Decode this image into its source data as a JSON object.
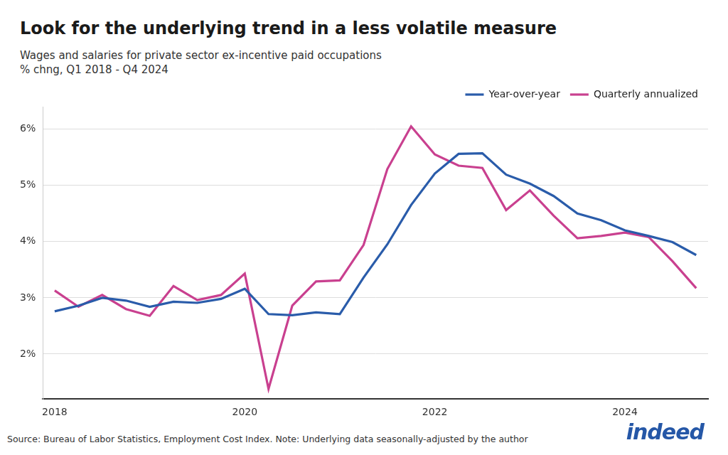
{
  "chart_data": {
    "type": "line",
    "title": "Look for the underlying trend in a less volatile measure",
    "subtitle": [
      "Wages and salaries for private sector ex-incentive paid occupations",
      "% chng, Q1 2018 - Q4 2024"
    ],
    "source": "Source: Bureau of Labor Statistics, Employment Cost Index. Note: Underlying data seasonally-adjusted by the author",
    "logo": "indeed",
    "categories": [
      "2018",
      null,
      null,
      null,
      null,
      null,
      null,
      null,
      "2020",
      null,
      null,
      null,
      null,
      null,
      null,
      null,
      "2022",
      null,
      null,
      null,
      null,
      null,
      null,
      null,
      "2024",
      null,
      null,
      null
    ],
    "series": [
      {
        "name": "Year-over-year",
        "color": "#2a5caa",
        "values": [
          2.76,
          2.86,
          3.0,
          2.95,
          2.84,
          2.93,
          2.91,
          2.98,
          3.16,
          2.71,
          2.69,
          2.74,
          2.71,
          3.36,
          3.95,
          4.65,
          5.21,
          5.56,
          5.57,
          5.19,
          5.03,
          4.81,
          4.5,
          4.38,
          4.2,
          4.1,
          3.99,
          3.76
        ]
      },
      {
        "name": "Quarterly annualized",
        "color": "#c9408f",
        "values": [
          3.13,
          2.84,
          3.05,
          2.8,
          2.68,
          3.21,
          2.96,
          3.05,
          3.43,
          1.38,
          2.86,
          3.29,
          3.31,
          3.94,
          5.29,
          6.05,
          5.55,
          5.35,
          5.31,
          4.56,
          4.91,
          4.46,
          4.06,
          4.1,
          4.16,
          4.08,
          3.65,
          3.17
        ]
      }
    ],
    "ylim": [
      1.2,
      6.4
    ],
    "yticks": [
      {
        "value": 2,
        "label": "2%"
      },
      {
        "value": 3,
        "label": "3%"
      },
      {
        "value": 4,
        "label": "4%"
      },
      {
        "value": 5,
        "label": "5%"
      },
      {
        "value": 6,
        "label": "6%"
      }
    ],
    "grid": true,
    "legend": "top-right"
  }
}
